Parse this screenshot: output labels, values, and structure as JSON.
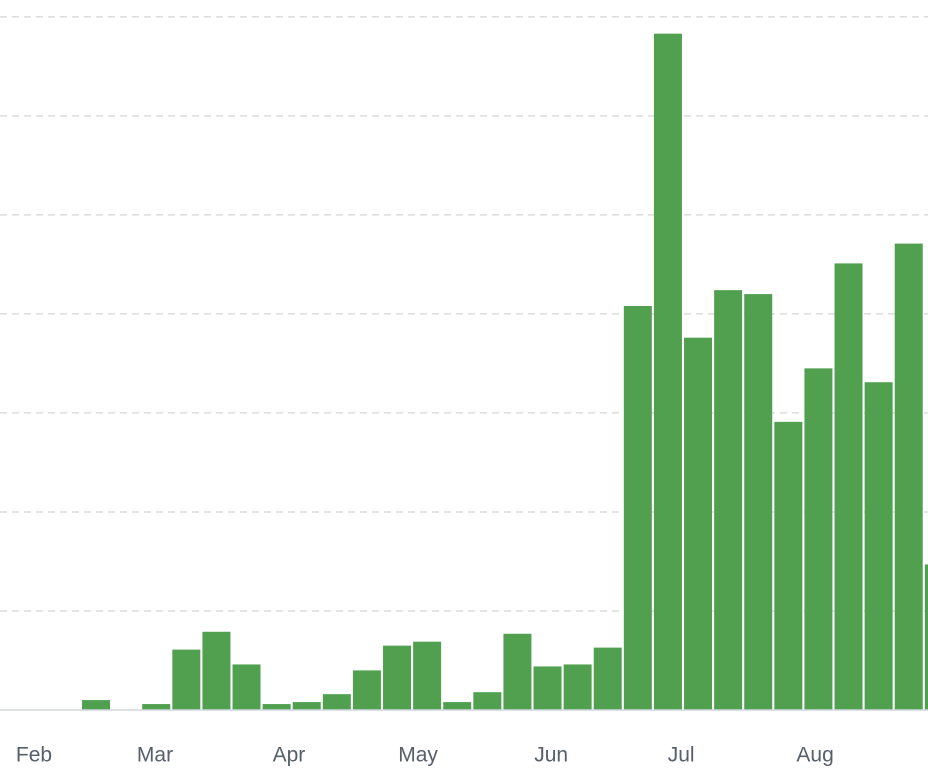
{
  "chart_data": {
    "type": "bar",
    "color": "#50a050",
    "x": [
      0,
      1,
      2,
      3,
      4,
      5,
      6,
      7,
      8,
      9,
      10,
      11,
      12,
      13,
      14,
      15,
      16,
      17,
      18,
      19,
      20,
      21,
      22,
      23,
      24,
      25,
      26,
      27,
      28
    ],
    "values": [
      0.1,
      0,
      0.06,
      0.61,
      0.79,
      0.46,
      0.06,
      0.08,
      0.16,
      0.4,
      0.65,
      0.69,
      0.08,
      0.18,
      0.77,
      0.44,
      0.46,
      0.63,
      4.08,
      6.83,
      3.76,
      4.24,
      4.2,
      2.91,
      3.45,
      4.51,
      3.31,
      4.71,
      1.47
    ],
    "xlim": [
      -3.19,
      27.64
    ],
    "xticks": [
      {
        "value": -2.06,
        "label": "Feb"
      },
      {
        "value": 1.96,
        "label": "Mar"
      },
      {
        "value": 6.41,
        "label": "Apr"
      },
      {
        "value": 10.7,
        "label": "May"
      },
      {
        "value": 15.12,
        "label": "Jun"
      },
      {
        "value": 19.44,
        "label": "Jul"
      },
      {
        "value": 23.89,
        "label": "Aug"
      }
    ],
    "ylim": [
      0,
      7.17
    ],
    "gridlines": [
      1,
      2,
      3,
      4,
      5,
      6,
      7
    ],
    "grid": true
  }
}
